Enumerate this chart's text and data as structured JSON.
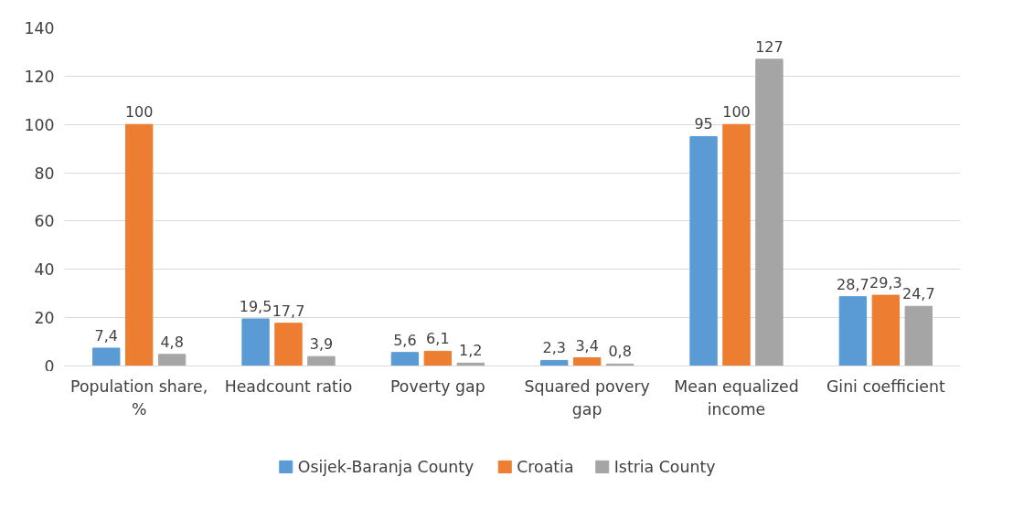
{
  "chart_data": {
    "type": "bar",
    "categories": [
      "Population share, %",
      "Headcount ratio",
      "Poverty gap",
      "Squared povery gap",
      "Mean equalized income",
      "Gini coefficient"
    ],
    "series": [
      {
        "name": "Osijek-Baranja County",
        "color": "#5b9bd5",
        "values": [
          7.4,
          19.5,
          5.6,
          2.3,
          95,
          28.7
        ],
        "value_labels": [
          "7,4",
          "19,5",
          "5,6",
          "2,3",
          "95",
          "28,7"
        ]
      },
      {
        "name": "Croatia",
        "color": "#ed7d31",
        "values": [
          100,
          17.7,
          6.1,
          3.4,
          100,
          29.3
        ],
        "value_labels": [
          "100",
          "17,7",
          "6,1",
          "3,4",
          "100",
          "29,3"
        ]
      },
      {
        "name": "Istria County",
        "color": "#a5a5a5",
        "values": [
          4.8,
          3.9,
          1.2,
          0.8,
          127,
          24.7
        ],
        "value_labels": [
          "4,8",
          "3,9",
          "1,2",
          "0,8",
          "127",
          "24,7"
        ]
      }
    ],
    "ylim": [
      0,
      140
    ],
    "yticks": [
      0,
      20,
      40,
      60,
      80,
      100,
      120,
      140
    ],
    "grid": "y",
    "legend": "bottom"
  }
}
